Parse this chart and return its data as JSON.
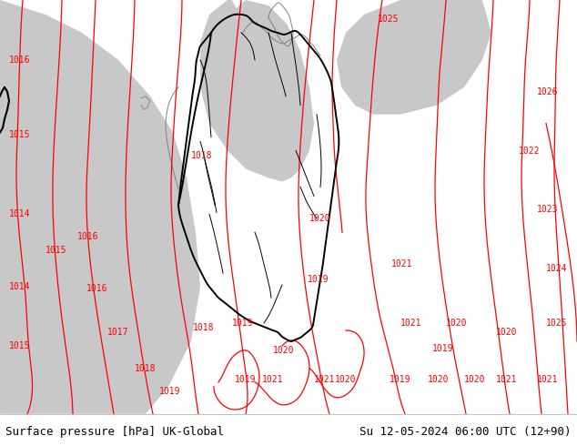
{
  "title_left": "Surface pressure [hPa] UK-Global",
  "title_right": "Su 12-05-2024 06:00 UTC (12+90)",
  "bg_gray": "#c8c8c8",
  "bg_green": "#b8f0a0",
  "isobar_color": "#ff0000",
  "border_black": "#000000",
  "coast_gray": "#808080",
  "lw_isobar": 0.9,
  "lw_border": 1.4,
  "lw_coast": 0.7,
  "fs_label": 7,
  "fs_title": 9,
  "fig_width": 6.34,
  "fig_height": 4.9,
  "dpi": 100
}
